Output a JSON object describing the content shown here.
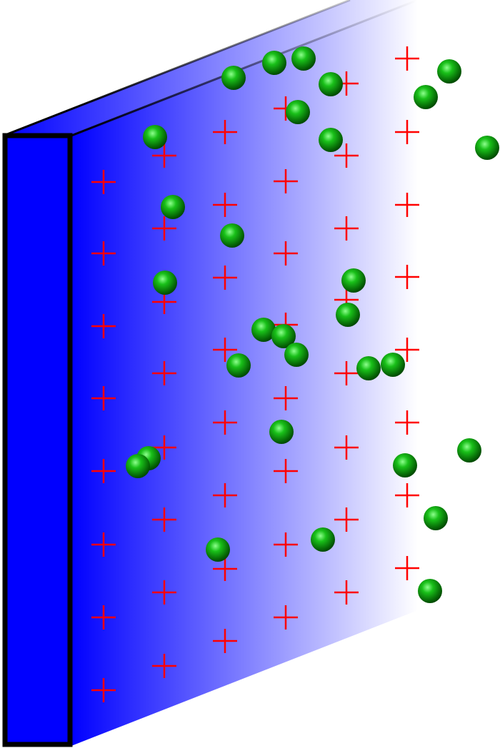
{
  "colors": {
    "plate": "#0000ff",
    "plate_outline": "#000000",
    "charge": "#ff0000",
    "particle_light": "#7dff7d",
    "particle_mid": "#00b000",
    "particle_dark": "#004d00",
    "background": "#ffffff"
  },
  "charge_symbol": "plus-sign",
  "particle_shape": "green-sphere",
  "plate_gradient": "blue-fading-to-transparent"
}
